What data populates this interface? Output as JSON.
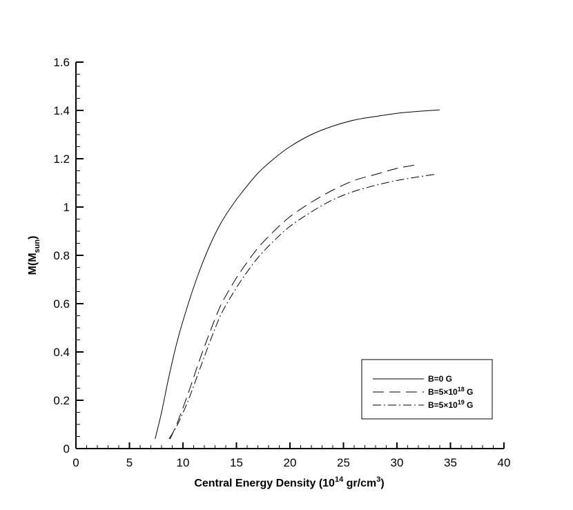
{
  "chart_data": {
    "type": "line",
    "title": "",
    "xlabel": "Central Energy Density (10",
    "xlabel_sup": "14",
    "xlabel_tail": " gr/cm",
    "xlabel_sup2": "3",
    "xlabel_end": ")",
    "ylabel": "M(M",
    "ylabel_sub": "sun",
    "ylabel_end": ")",
    "xlim": [
      0,
      40
    ],
    "ylim": [
      0,
      1.6
    ],
    "x_ticks": [
      "0",
      "5",
      "10",
      "15",
      "20",
      "25",
      "30",
      "35",
      "40"
    ],
    "y_ticks": [
      "0",
      "0.2",
      "0.4",
      "0.6",
      "0.8",
      "1",
      "1.2",
      "1.4",
      "1.6"
    ],
    "grid": false,
    "legend_position": "bottom-right",
    "series": [
      {
        "name": "B=0 G",
        "name_parts": [
          "B=0 G"
        ],
        "style": "solid",
        "x": [
          7.4,
          8.0,
          8.7,
          9.5,
          10.5,
          11.5,
          12.5,
          13.5,
          14.5,
          15.5,
          17,
          18.5,
          20,
          22,
          24,
          26,
          28,
          30,
          32,
          34
        ],
        "y": [
          0.04,
          0.15,
          0.3,
          0.45,
          0.6,
          0.73,
          0.84,
          0.93,
          1.0,
          1.06,
          1.14,
          1.2,
          1.25,
          1.3,
          1.335,
          1.36,
          1.375,
          1.388,
          1.396,
          1.402
        ]
      },
      {
        "name": "B=5×10¹⁸ G",
        "name_parts": [
          "B=5×10",
          "18",
          " G"
        ],
        "style": "dashed",
        "x": [
          8.8,
          9.5,
          10.5,
          11.5,
          12.5,
          13.5,
          14.5,
          15.5,
          17,
          18.5,
          20,
          22,
          24,
          26,
          28,
          30,
          31.8
        ],
        "y": [
          0.04,
          0.11,
          0.23,
          0.36,
          0.48,
          0.59,
          0.67,
          0.74,
          0.83,
          0.9,
          0.96,
          1.02,
          1.07,
          1.11,
          1.135,
          1.16,
          1.175
        ]
      },
      {
        "name": "B=5×10¹⁹ G",
        "name_parts": [
          "B=5×10",
          "19",
          " G"
        ],
        "style": "dashdot",
        "x": [
          8.7,
          9.5,
          10.5,
          11.5,
          12.5,
          13.5,
          14.5,
          15.5,
          17,
          18.5,
          20,
          22,
          24,
          26,
          28,
          30,
          32,
          33.5
        ],
        "y": [
          0.04,
          0.1,
          0.2,
          0.32,
          0.44,
          0.55,
          0.63,
          0.7,
          0.79,
          0.86,
          0.92,
          0.98,
          1.03,
          1.065,
          1.09,
          1.11,
          1.125,
          1.135
        ]
      }
    ]
  }
}
